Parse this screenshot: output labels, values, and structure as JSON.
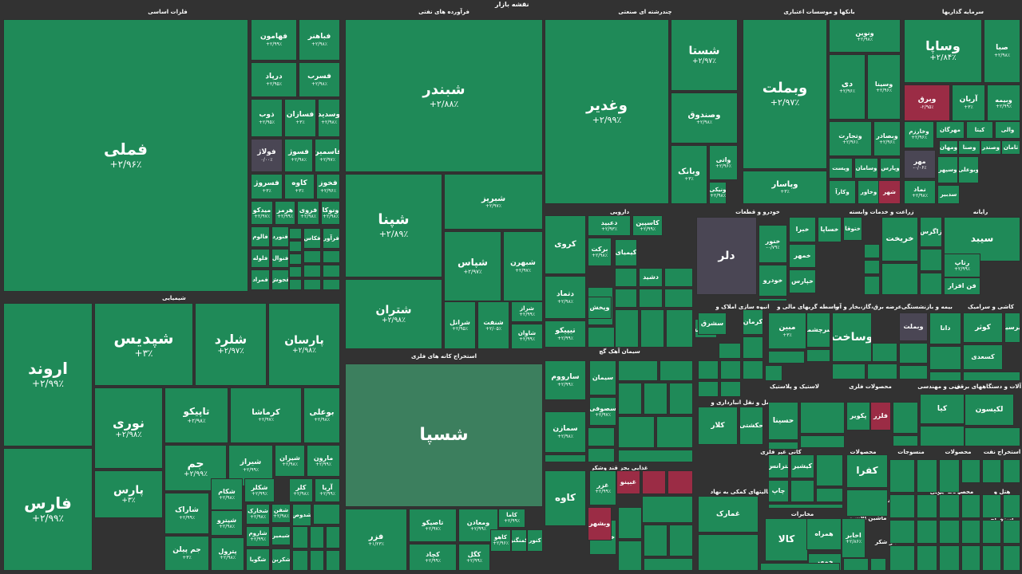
{
  "title": "نقشه بازار",
  "colors": {
    "positive": "#1f8a58",
    "negative": "#9b2c45",
    "neutral": "#4a4654",
    "background": "#323232"
  },
  "sectors": [
    {
      "name": "فلزات اساسی"
    },
    {
      "name": "فرآورده های نفتی"
    },
    {
      "name": "چندرشته ای صنعتی"
    },
    {
      "name": "بانکها و موسسات اعتباری"
    },
    {
      "name": "سرمایه گذاریها"
    },
    {
      "name": "شیمیایی"
    },
    {
      "name": "استخراج کانه های فلزی"
    },
    {
      "name": "دارویی"
    },
    {
      "name": "خودرو و قطعات"
    },
    {
      "name": "زراعت و خدمات وابسته"
    },
    {
      "name": "رایانه"
    },
    {
      "name": "سیمان آهک گچ"
    },
    {
      "name": "انبوه سازی املاک و"
    },
    {
      "name": "واسطه گریهای مالی و"
    },
    {
      "name": "عرضه برق،گاز،بخار و آب"
    },
    {
      "name": "بیمه و بازنشستگی"
    },
    {
      "name": "کاشی و سرامیک"
    },
    {
      "name": "حمل و نقل انبارداری و"
    },
    {
      "name": "لاستیک و پلاستیک"
    },
    {
      "name": "محصولات فلزی"
    },
    {
      "name": "فنی و مهندسی"
    },
    {
      "name": "ماشین آلات و دستگاههای برقی"
    },
    {
      "name": "کانی غیر فلزی"
    },
    {
      "name": "محصولات"
    },
    {
      "name": "منسوجات"
    },
    {
      "name": "محصولات"
    },
    {
      "name": "استخراج نفت"
    },
    {
      "name": "غذایی بجز قند وشکر"
    },
    {
      "name": "فعالیتهای کمکی به نهاد"
    },
    {
      "name": "مخابرات"
    },
    {
      "name": "محصولات چوبی"
    },
    {
      "name": "هتل و"
    },
    {
      "name": "اطلاعات و"
    },
    {
      "name": "ماشین آلات و"
    },
    {
      "name": "استخراج"
    },
    {
      "name": "قند و شکر"
    }
  ],
  "tiles": [
    {
      "symbol": "فملی",
      "change": "+۲/۹۶٪"
    },
    {
      "symbol": "فباهنر",
      "change": "+۲/۹۸٪"
    },
    {
      "symbol": "فهامون",
      "change": "+۲/۹۹٪"
    },
    {
      "symbol": "فسرب",
      "change": "+۲/۹۸٪"
    },
    {
      "symbol": "درپاد",
      "change": "+۲/۹۵٪"
    },
    {
      "symbol": "وسدید",
      "change": "+۲/۹۸٪"
    },
    {
      "symbol": "فسازان",
      "change": "+۳٪"
    },
    {
      "symbol": "ذوب",
      "change": "+۲/۹۵٪"
    },
    {
      "symbol": "فاسمین",
      "change": "+۲/۹۷٪"
    },
    {
      "symbol": "فسوژ",
      "change": "+۲/۹۸٪"
    },
    {
      "symbol": "فولاژ",
      "change": "۰/۰۰٪"
    },
    {
      "symbol": "فخوز",
      "change": "+۲/۹۶٪"
    },
    {
      "symbol": "کاوه",
      "change": "+۳٪"
    },
    {
      "symbol": "فسروژ",
      "change": "+۳٪"
    },
    {
      "symbol": "ونوکا",
      "change": "+۲/۹۸٪"
    },
    {
      "symbol": "فروی",
      "change": "+۲/۹۸٪"
    },
    {
      "symbol": "هرمز",
      "change": "+۲/۹۹٪"
    },
    {
      "symbol": "میدکو",
      "change": "+۲/۹۷٪"
    },
    {
      "symbol": "فنورد",
      "change": ""
    },
    {
      "symbol": "فالوم",
      "change": ""
    },
    {
      "symbol": "فنوال",
      "change": ""
    },
    {
      "symbol": "فلوله",
      "change": ""
    },
    {
      "symbol": "فجوش",
      "change": ""
    },
    {
      "symbol": "فمراد",
      "change": ""
    },
    {
      "symbol": "فکاس",
      "change": ""
    },
    {
      "symbol": "فرآور",
      "change": ""
    },
    {
      "symbol": "شبندر",
      "change": "+۲/۸۸٪"
    },
    {
      "symbol": "شپنا",
      "change": "+۲/۸۹٪"
    },
    {
      "symbol": "شبریز",
      "change": "+۲/۹۷٪"
    },
    {
      "symbol": "شپاس",
      "change": "+۲/۹۷٪"
    },
    {
      "symbol": "شبهرن",
      "change": "+۲/۹۷٪"
    },
    {
      "symbol": "شتران",
      "change": "+۲/۹۸٪"
    },
    {
      "symbol": "شراز",
      "change": "+۲/۹۹٪"
    },
    {
      "symbol": "شاوان",
      "change": "+۲/۹۹٪"
    },
    {
      "symbol": "شنفت",
      "change": "+۲/۰۵٪"
    },
    {
      "symbol": "شرانل",
      "change": "+۲/۹۵٪"
    },
    {
      "symbol": "وغدیر",
      "change": "+۲/۹۹٪"
    },
    {
      "symbol": "شستا",
      "change": "+۲/۹۷٪"
    },
    {
      "symbol": "وصندوق",
      "change": "+۲/۹۸٪"
    },
    {
      "symbol": "وبانک",
      "change": "+۳٪"
    },
    {
      "symbol": "واتی",
      "change": "+۲/۹۶٪"
    },
    {
      "symbol": "ونیکی",
      "change": "+۲/۹۸٪"
    },
    {
      "symbol": "وبملت",
      "change": "+۲/۹۷٪"
    },
    {
      "symbol": "ونوین",
      "change": "+۲/۹۸٪"
    },
    {
      "symbol": "دی",
      "change": "+۲/۹۶٪"
    },
    {
      "symbol": "وسینا",
      "change": "+۲/۹۶٪"
    },
    {
      "symbol": "وتجارت",
      "change": "+۲/۹۶٪"
    },
    {
      "symbol": "وبصادر",
      "change": "+۲/۹۶٪"
    },
    {
      "symbol": "وپاسار",
      "change": "+۳٪"
    },
    {
      "symbol": "وپست",
      "change": ""
    },
    {
      "symbol": "وسامان",
      "change": ""
    },
    {
      "symbol": "وپارس",
      "change": ""
    },
    {
      "symbol": "وکارآ",
      "change": ""
    },
    {
      "symbol": "وخاور",
      "change": ""
    },
    {
      "symbol": "شهر",
      "change": ""
    },
    {
      "symbol": "وساپا",
      "change": "+۲/۸۴٪"
    },
    {
      "symbol": "صبا",
      "change": "+۲/۹۸٪"
    },
    {
      "symbol": "وبرق",
      "change": "-۲/۹۵٪"
    },
    {
      "symbol": "آریان",
      "change": "+۳٪"
    },
    {
      "symbol": "وبیمه",
      "change": "+۲/۹۹٪"
    },
    {
      "symbol": "وخارزم",
      "change": "+۲/۹۶٪"
    },
    {
      "symbol": "مهرگان",
      "change": ""
    },
    {
      "symbol": "کیتا",
      "change": ""
    },
    {
      "symbol": "والی",
      "change": ""
    },
    {
      "symbol": "وصنا",
      "change": ""
    },
    {
      "symbol": "ومهان",
      "change": ""
    },
    {
      "symbol": "وصندر",
      "change": ""
    },
    {
      "symbol": "مهر",
      "change": "-۰/۰۶٪"
    },
    {
      "symbol": "ثامان",
      "change": ""
    },
    {
      "symbol": "وسپهر",
      "change": ""
    },
    {
      "symbol": "وبوعلی",
      "change": ""
    },
    {
      "symbol": "سدبیر",
      "change": ""
    },
    {
      "symbol": "نماد",
      "change": "+۲/۹۸٪"
    },
    {
      "symbol": "اروند",
      "change": "+۲/۹۹٪"
    },
    {
      "symbol": "فارس",
      "change": "+۲/۹۹٪"
    },
    {
      "symbol": "شپدیس",
      "change": "+۳٪"
    },
    {
      "symbol": "شلرد",
      "change": "+۲/۹۷٪"
    },
    {
      "symbol": "پارسان",
      "change": "+۲/۹۸٪"
    },
    {
      "symbol": "نوری",
      "change": "+۲/۹۸٪"
    },
    {
      "symbol": "تاپیکو",
      "change": "+۲/۹۸٪"
    },
    {
      "symbol": "کرماشا",
      "change": "+۲/۹۷٪"
    },
    {
      "symbol": "بوعلی",
      "change": "+۲/۹۸٪"
    },
    {
      "symbol": "شیراز",
      "change": "+۲/۹۹٪"
    },
    {
      "symbol": "پارس",
      "change": "+۳٪"
    },
    {
      "symbol": "جم",
      "change": "+۲/۹۹٪"
    },
    {
      "symbol": "جم پیلن",
      "change": "+۳٪"
    },
    {
      "symbol": "شاراک",
      "change": "+۲/۹۹٪"
    },
    {
      "symbol": "شیران",
      "change": "+۲/۹۸٪"
    },
    {
      "symbol": "شپترو",
      "change": "+۲/۹۸٪"
    },
    {
      "symbol": "مارون",
      "change": "+۲/۹۹٪"
    },
    {
      "symbol": "شکلر",
      "change": "+۲/۹۹٪"
    },
    {
      "symbol": "شکام",
      "change": "+۲/۹۸٪"
    },
    {
      "symbol": "کلر",
      "change": "+۲/۹۸٪"
    },
    {
      "symbol": "آریا",
      "change": "+۲/۹۹٪"
    },
    {
      "symbol": "پترول",
      "change": "+۲/۹۸٪"
    },
    {
      "symbol": "شخارک",
      "change": "+۲/۹۸٪"
    },
    {
      "symbol": "شاروم",
      "change": "+۲/۹۹٪"
    },
    {
      "symbol": "شفن",
      "change": "+۲/۹۸٪"
    },
    {
      "symbol": "شیمیر",
      "change": ""
    },
    {
      "symbol": "شگویا",
      "change": ""
    },
    {
      "symbol": "شکربن",
      "change": ""
    },
    {
      "symbol": "شدوص",
      "change": ""
    },
    {
      "symbol": "شسپا",
      "change": ""
    },
    {
      "symbol": "فزر",
      "change": "+۱/۲۳٪"
    },
    {
      "symbol": "تاصیکو",
      "change": "+۲/۹۷٪"
    },
    {
      "symbol": "ومعادن",
      "change": "+۲/۹۹٪"
    },
    {
      "symbol": "کچاد",
      "change": "+۲/۹۹٪"
    },
    {
      "symbol": "کگل",
      "change": "+۲/۹۹٪"
    },
    {
      "symbol": "کاما",
      "change": "+۲/۹۹٪"
    },
    {
      "symbol": "کاهو",
      "change": "+۲/۹۶٪"
    },
    {
      "symbol": "کمنگنز",
      "change": ""
    },
    {
      "symbol": "کنور",
      "change": ""
    },
    {
      "symbol": "کروی",
      "change": ""
    },
    {
      "symbol": "دعبید",
      "change": "+۲/۹۳٪"
    },
    {
      "symbol": "کاسپین",
      "change": "+۲/۹۹٪"
    },
    {
      "symbol": "دارو",
      "change": "+۲/۹۸٪"
    },
    {
      "symbol": "دتماد",
      "change": "+۲/۹۸٪"
    },
    {
      "symbol": "تیپیکو",
      "change": "+۲/۹۹٪"
    },
    {
      "symbol": "برکت",
      "change": "+۲/۹۸٪"
    },
    {
      "symbol": "وپخش",
      "change": ""
    },
    {
      "symbol": "کیمیای",
      "change": ""
    },
    {
      "symbol": "دشید",
      "change": ""
    },
    {
      "symbol": "دلر",
      "change": ""
    },
    {
      "symbol": "خنور",
      "change": "-۰/۷۹٪"
    },
    {
      "symbol": "خبرا",
      "change": ""
    },
    {
      "symbol": "خساپا",
      "change": ""
    },
    {
      "symbol": "ختوقا",
      "change": ""
    },
    {
      "symbol": "خودرو",
      "change": ""
    },
    {
      "symbol": "خمهر",
      "change": ""
    },
    {
      "symbol": "خپارس",
      "change": ""
    },
    {
      "symbol": "خریخت",
      "change": ""
    },
    {
      "symbol": "زاگرس",
      "change": ""
    },
    {
      "symbol": "سیبد",
      "change": ""
    },
    {
      "symbol": "رتاپ",
      "change": "+۲/۹۹٪"
    },
    {
      "symbol": "فن افزار",
      "change": ""
    },
    {
      "symbol": "تاپکیش",
      "change": ""
    },
    {
      "symbol": "سیمان",
      "change": ""
    },
    {
      "symbol": "سارووم",
      "change": "+۲/۹۹٪"
    },
    {
      "symbol": "سمازن",
      "change": "+۲/۹۸٪"
    },
    {
      "symbol": "سصوفی",
      "change": "+۲/۹۷٪"
    },
    {
      "symbol": "سشرق",
      "change": ""
    },
    {
      "symbol": "کرمان",
      "change": ""
    },
    {
      "symbol": "وساخت",
      "change": ""
    },
    {
      "symbol": "مبین",
      "change": "+۳٪"
    },
    {
      "symbol": "سرچشمه",
      "change": ""
    },
    {
      "symbol": "وبملت",
      "change": ""
    },
    {
      "symbol": "دانا",
      "change": ""
    },
    {
      "symbol": "کوثر",
      "change": ""
    },
    {
      "symbol": "کپرسین",
      "change": ""
    },
    {
      "symbol": "کسعدی",
      "change": ""
    },
    {
      "symbol": "کلار",
      "change": ""
    },
    {
      "symbol": "حکشتی",
      "change": ""
    },
    {
      "symbol": "حسینا",
      "change": ""
    },
    {
      "symbol": "پکویر",
      "change": ""
    },
    {
      "symbol": "فلزر",
      "change": ""
    },
    {
      "symbol": "کیا",
      "change": ""
    },
    {
      "symbol": "لکیسون",
      "change": ""
    },
    {
      "symbol": "بترانس",
      "change": ""
    },
    {
      "symbol": "کیشیر",
      "change": ""
    },
    {
      "symbol": "کفرا",
      "change": ""
    },
    {
      "symbol": "چاپ",
      "change": ""
    },
    {
      "symbol": "کاوه",
      "change": ""
    },
    {
      "symbol": "غزر",
      "change": "+۲/۹۹٪"
    },
    {
      "symbol": "غبینو",
      "change": ""
    },
    {
      "symbol": "خوشکاد",
      "change": ""
    },
    {
      "symbol": "وبشهر",
      "change": ""
    },
    {
      "symbol": "غمارک",
      "change": ""
    },
    {
      "symbol": "کالا",
      "change": ""
    },
    {
      "symbol": "اخابر",
      "change": "+۲/۸۶٪"
    },
    {
      "symbol": "همراه",
      "change": ""
    },
    {
      "symbol": "خمهر",
      "change": ""
    },
    {
      "symbol": "مخابرات",
      "change": ""
    }
  ]
}
